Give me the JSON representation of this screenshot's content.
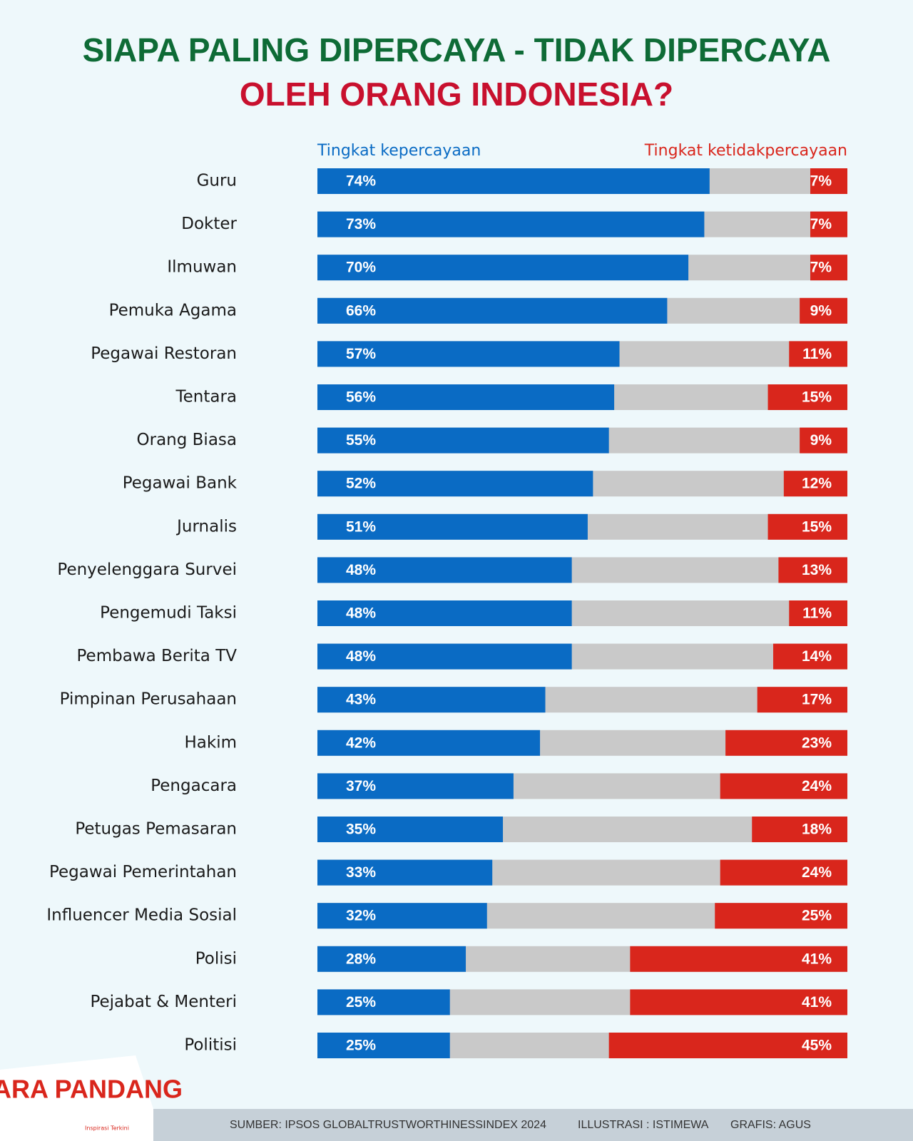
{
  "chart_data": {
    "type": "bar",
    "orientation": "horizontal",
    "title": [
      "SIAPA PALING DIPERCAYA - TIDAK DIPERCAYA",
      "OLEH ORANG INDONESIA?"
    ],
    "title_colors": [
      "#0e6b36",
      "#c8102e"
    ],
    "categories": [
      "Guru",
      "Dokter",
      "Ilmuwan",
      "Pemuka Agama",
      "Pegawai Restoran",
      "Tentara",
      "Orang Biasa",
      "Pegawai Bank",
      "Jurnalis",
      "Penyelenggara Survei",
      "Pengemudi Taksi",
      "Pembawa Berita TV",
      "Pimpinan Perusahaan",
      "Hakim",
      "Pengacara",
      "Petugas Pemasaran",
      "Pegawai Pemerintahan",
      "Influencer Media Sosial",
      "Polisi",
      "Pejabat & Menteri",
      "Politisi"
    ],
    "xlim": [
      0,
      100
    ],
    "series": [
      {
        "name": "Tingkat kepercayaan",
        "color": "#0a6bc4",
        "anchor": "left",
        "values": [
          74,
          73,
          70,
          66,
          57,
          56,
          55,
          52,
          51,
          48,
          48,
          48,
          43,
          42,
          37,
          35,
          33,
          32,
          28,
          25,
          25
        ],
        "value_labels": [
          "74%",
          "73%",
          "70%",
          "66%",
          "57%",
          "56%",
          "55%",
          "52%",
          "51%",
          "48%",
          "48%",
          "48%",
          "43%",
          "42%",
          "37%",
          "35%",
          "33%",
          "32%",
          "28%",
          "25%",
          "25%"
        ]
      },
      {
        "name": "Tingkat ketidakpercayaan",
        "color": "#d9261c",
        "anchor": "right",
        "values": [
          7,
          7,
          7,
          9,
          11,
          15,
          9,
          12,
          15,
          13,
          11,
          14,
          17,
          23,
          24,
          18,
          24,
          25,
          41,
          41,
          45
        ],
        "value_labels": [
          "7%",
          "7%",
          "7%",
          "9%",
          "11%",
          "15%",
          "9%",
          "12%",
          "15%",
          "13%",
          "11%",
          "14%",
          "17%",
          "23%",
          "24%",
          "18%",
          "24%",
          "25%",
          "41%",
          "41%",
          "45%"
        ]
      }
    ],
    "track_color": "#c9c9c9"
  },
  "logo": {
    "name": "CARA PANDANG",
    "tagline": "Inspirasi Terkini"
  },
  "footer": [
    "SUMBER: IPSOS GLOBALTRUSTWORTHINESSINDEX 2024",
    "ILLUSTRASI : ISTIMEWA",
    "GRAFIS: AGUS"
  ]
}
